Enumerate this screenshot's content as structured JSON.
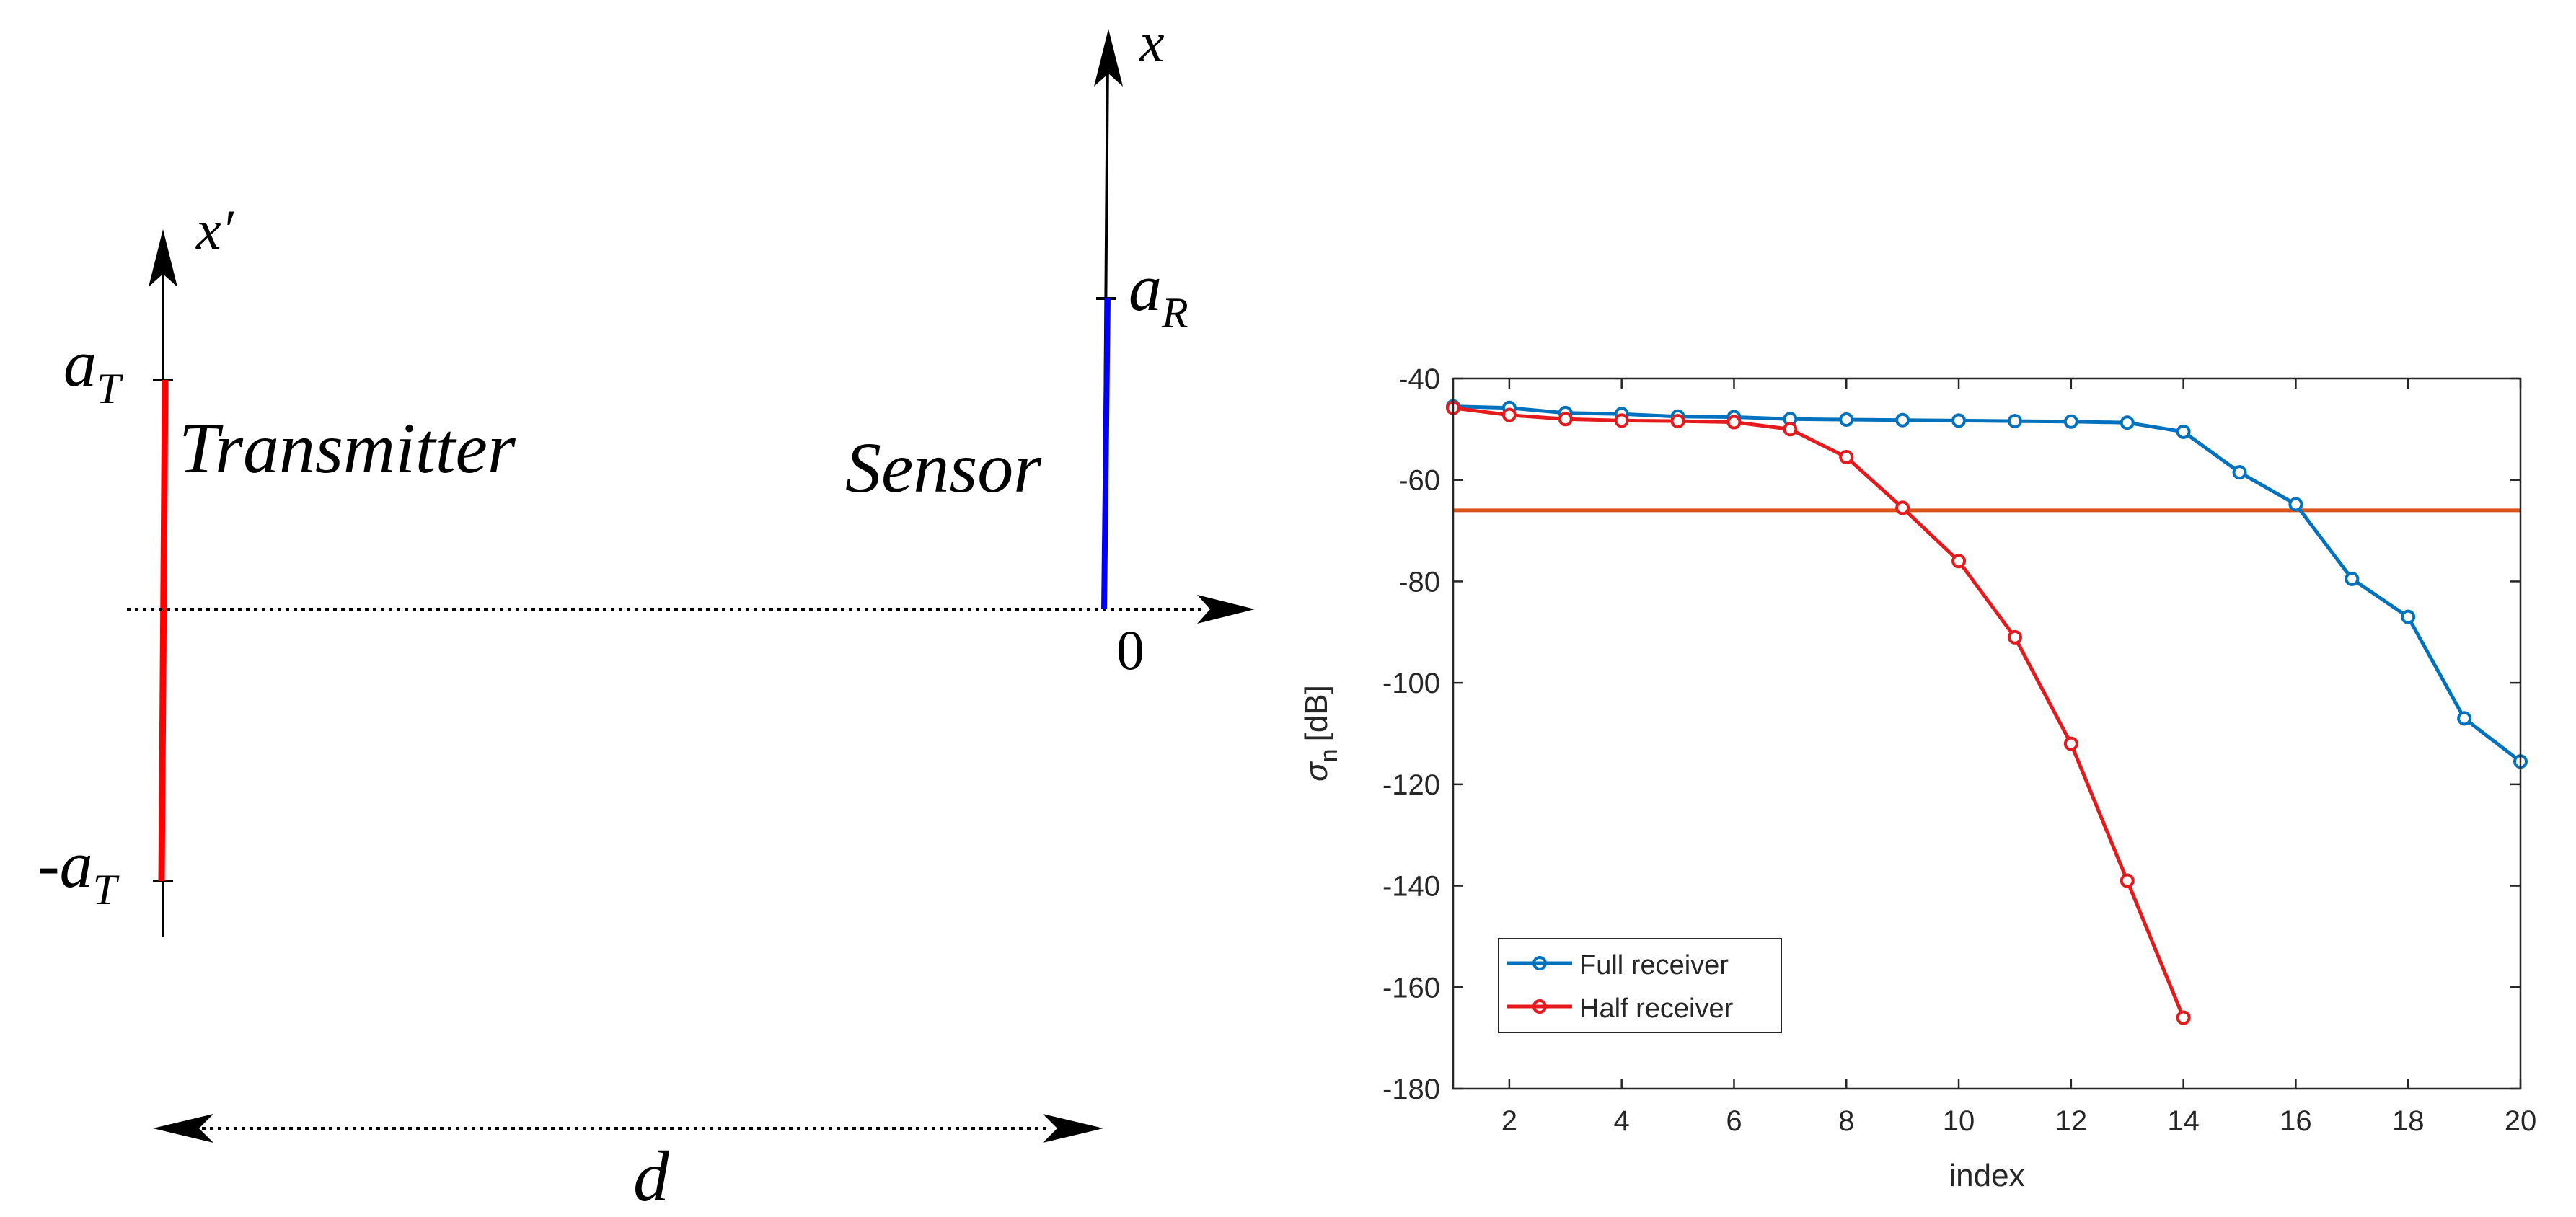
{
  "diagram": {
    "transmitter_label": "Transmitter",
    "sensor_label": "Sensor",
    "x_prime_label": "x′",
    "x_label": "x",
    "a_T_base": "a",
    "a_T_sub": "T",
    "minus_a_T_prefix": "-",
    "a_R_base": "a",
    "a_R_sub": "R",
    "origin_label": "0",
    "distance_label": "d",
    "colors": {
      "transmitter": "#ff0000",
      "sensor": "#0000ff",
      "axis": "#000000"
    }
  },
  "chart_data": {
    "type": "line",
    "title": "",
    "xlabel": "index",
    "ylabel_symbol": "σ",
    "ylabel_sub": "n",
    "ylabel_unit": "[dB]",
    "xlim": [
      1,
      20
    ],
    "ylim": [
      -180,
      -40
    ],
    "xticks": [
      2,
      4,
      6,
      8,
      10,
      12,
      14,
      16,
      18,
      20
    ],
    "yticks": [
      -40,
      -60,
      -80,
      -100,
      -120,
      -140,
      -160,
      -180
    ],
    "legend_position": "bottom-left",
    "series": [
      {
        "name": "Full receiver",
        "color": "#0072bd",
        "x": [
          1,
          2,
          3,
          4,
          5,
          6,
          7,
          8,
          9,
          10,
          11,
          12,
          13,
          14,
          15,
          16,
          17,
          18,
          19,
          20
        ],
        "values": [
          -45.5,
          -45.8,
          -46.8,
          -47,
          -47.5,
          -47.6,
          -48,
          -48.1,
          -48.2,
          -48.3,
          -48.4,
          -48.5,
          -48.7,
          -50.5,
          -58.5,
          -64.8,
          -79.5,
          -87,
          -107,
          -115.5
        ]
      },
      {
        "name": "Half receiver",
        "color": "#e41a1c",
        "x": [
          1,
          2,
          3,
          4,
          5,
          6,
          7,
          8,
          9,
          10,
          11,
          12,
          13,
          14
        ],
        "values": [
          -45.8,
          -47.2,
          -48,
          -48.3,
          -48.4,
          -48.6,
          -50,
          -55.5,
          -65.5,
          -76,
          -91,
          -112,
          -139,
          -166
        ]
      }
    ],
    "threshold": {
      "value": -66,
      "color": "#d95319"
    }
  }
}
